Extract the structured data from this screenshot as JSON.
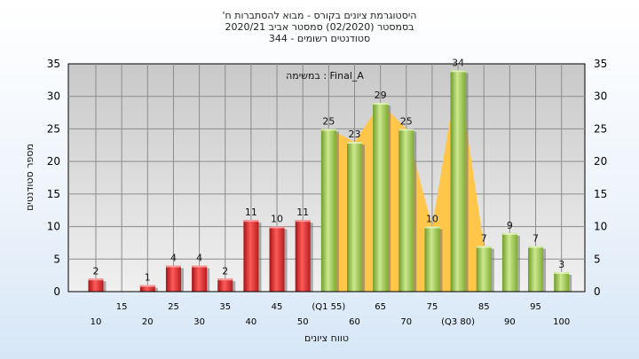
{
  "chart_data": {
    "type": "bar",
    "title_lines": [
      "'היסטוגרמת ציונים בקורס - מבוא להסתברות ח",
      "בסמסטר  (02/2020)  סמסטר אביב 2020/21",
      "סטודנטים רשומים - 344"
    ],
    "annotation": "במשימה : Final_A",
    "xlabel": "טווח ציונים",
    "ylabel": "מספר סטודנטים",
    "ylim": [
      0,
      35
    ],
    "yticks": [
      0,
      5,
      10,
      15,
      20,
      25,
      30,
      35
    ],
    "grid": true,
    "categories": [
      "10",
      "15",
      "20",
      "25",
      "30",
      "35",
      "40",
      "45",
      "50",
      "(Q1 55)",
      "60",
      "65",
      "70",
      "75",
      "(Q3 80)",
      "85",
      "90",
      "95",
      "100"
    ],
    "values": [
      2,
      0,
      1,
      4,
      4,
      2,
      11,
      10,
      11,
      25,
      23,
      29,
      25,
      10,
      34,
      7,
      9,
      7,
      3
    ],
    "data_labels": [
      "2",
      "",
      "1",
      "4",
      "4",
      "2",
      "11",
      "10",
      "11",
      "25",
      "23",
      "29",
      "25",
      "10",
      "34",
      "7",
      "9",
      "7",
      "3"
    ],
    "bar_groups": [
      {
        "from": 0,
        "to": 8,
        "color": "#d42a2a"
      },
      {
        "from": 9,
        "to": 18,
        "color": "#8cbf3c"
      }
    ],
    "iqr_area": {
      "from_category": "(Q1 55)",
      "to_category": "(Q3 80)",
      "color": "#ffc64a"
    }
  }
}
